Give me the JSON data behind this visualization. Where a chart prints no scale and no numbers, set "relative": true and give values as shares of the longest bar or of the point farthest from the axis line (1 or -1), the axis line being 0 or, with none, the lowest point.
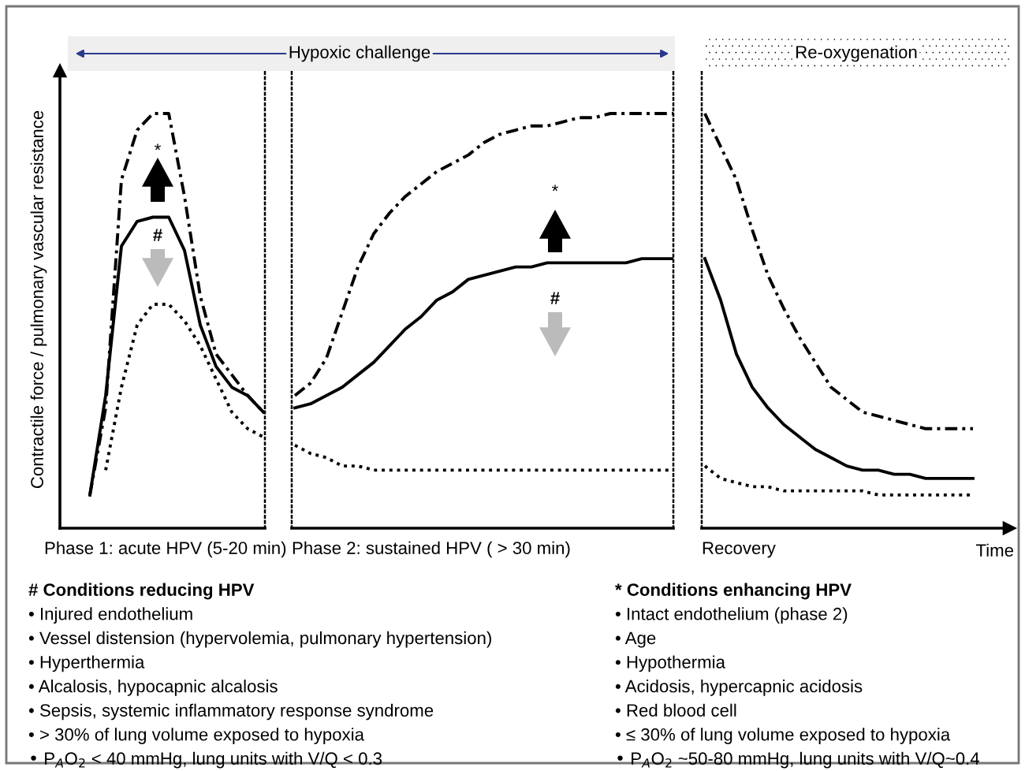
{
  "chart_data": [
    {
      "type": "line",
      "relative": true,
      "ylabel": "Contractile force / pulmonary vascular resistance",
      "xlabel": "Phase 1: acute HPV (5-20 min)",
      "categories": [
        null,
        null,
        null,
        null,
        null,
        null,
        null,
        null,
        null,
        null,
        null,
        null
      ],
      "series": [
        {
          "color": "#000000",
          "line_style": "dashdot",
          "values": [
            0.08,
            0.29,
            0.84,
            0.96,
            1.0,
            1.0,
            0.8,
            0.56,
            0.42,
            0.37,
            0.32,
            0.28
          ]
        },
        {
          "color": "#000000",
          "line_style": "solid",
          "values": [
            0.08,
            0.32,
            0.68,
            0.74,
            0.75,
            0.75,
            0.67,
            0.49,
            0.39,
            0.34,
            0.32,
            0.28
          ]
        },
        {
          "color": "#000000",
          "line_style": "dotted",
          "values": [
            null,
            0.14,
            0.34,
            0.49,
            0.54,
            0.54,
            0.5,
            0.44,
            0.36,
            0.28,
            0.24,
            0.22
          ]
        }
      ],
      "annotations": [
        "*",
        "#",
        "Hypoxic challenge",
        "# Conditions reducing HPV",
        "• Injured endothelium",
        "• Vessel distension (hypervolemia, pulmonary hypertension)",
        "• Hyperthermia",
        "• Alcalosis, hypocapnic alcalosis",
        "• Sepsis, systemic inflammatory response syndrome",
        "• > 30% of lung volume exposed to hypoxia",
        "• P$_{A}$O$_{2}$ < 40 mmHg, lung units with V/Q < 0.3"
      ]
    },
    {
      "type": "line",
      "relative": true,
      "xlabel": "Phase 2: sustained HPV ( > 30 min)",
      "categories": [
        null,
        null,
        null,
        null,
        null,
        null,
        null,
        null,
        null,
        null,
        null,
        null,
        null,
        null,
        null,
        null,
        null,
        null,
        null,
        null,
        null,
        null,
        null,
        null,
        null
      ],
      "series": [
        {
          "color": "#000000",
          "line_style": "dashdot",
          "values": [
            0.32,
            0.35,
            0.41,
            0.52,
            0.63,
            0.71,
            0.76,
            0.8,
            0.83,
            0.86,
            0.88,
            0.9,
            0.93,
            0.95,
            0.96,
            0.97,
            0.97,
            0.98,
            0.99,
            0.99,
            1.0,
            1.0,
            1.0,
            1.0,
            1.0
          ]
        },
        {
          "color": "#000000",
          "line_style": "solid",
          "values": [
            0.29,
            0.3,
            0.32,
            0.34,
            0.37,
            0.4,
            0.44,
            0.48,
            0.51,
            0.55,
            0.57,
            0.6,
            0.61,
            0.62,
            0.63,
            0.63,
            0.64,
            0.64,
            0.64,
            0.64,
            0.64,
            0.64,
            0.65,
            0.65,
            0.65
          ]
        },
        {
          "color": "#000000",
          "line_style": "dotted",
          "values": [
            0.2,
            0.18,
            0.17,
            0.15,
            0.15,
            0.14,
            0.14,
            0.14,
            0.14,
            0.14,
            0.14,
            0.14,
            0.14,
            0.14,
            0.14,
            0.14,
            0.14,
            0.14,
            0.14,
            0.14,
            0.14,
            0.14,
            0.14,
            0.14,
            0.14
          ]
        }
      ],
      "annotations": [
        "*",
        "#",
        "* Conditions enhancing HPV",
        "• Intact endothelium (phase 2)",
        "• Age",
        "• Hypothermia",
        "• Acidosis, hypercapnic acidosis",
        "• Red blood cell",
        "• ≤ 30% of lung volume exposed to hypoxia",
        "• P$_{A}$O$_{2}$ ~50-80 mmHg, lung units with V/Q~0.4"
      ]
    },
    {
      "type": "line",
      "relative": true,
      "xlabel": "Recovery",
      "categories": [
        null,
        null,
        null,
        null,
        null,
        null,
        null,
        null,
        null,
        null,
        null,
        null,
        null,
        null,
        null,
        null,
        null,
        null
      ],
      "series": [
        {
          "color": "#000000",
          "line_style": "dashdot",
          "values": [
            1.0,
            0.92,
            0.84,
            0.72,
            0.61,
            0.53,
            0.46,
            0.4,
            0.34,
            0.31,
            0.28,
            0.27,
            0.26,
            0.25,
            0.24,
            0.24,
            0.24,
            0.24
          ]
        },
        {
          "color": "#000000",
          "line_style": "solid",
          "values": [
            0.65,
            0.55,
            0.42,
            0.34,
            0.29,
            0.25,
            0.22,
            0.19,
            0.17,
            0.15,
            0.14,
            0.14,
            0.13,
            0.13,
            0.12,
            0.12,
            0.12,
            0.12
          ]
        },
        {
          "color": "#000000",
          "line_style": "dotted",
          "values": [
            0.15,
            0.12,
            0.11,
            0.1,
            0.1,
            0.09,
            0.09,
            0.09,
            0.09,
            0.09,
            0.09,
            0.08,
            0.08,
            0.08,
            0.08,
            0.08,
            0.08,
            0.08
          ]
        }
      ],
      "annotations": [
        "Time",
        "Re-oxygenation"
      ]
    }
  ]
}
